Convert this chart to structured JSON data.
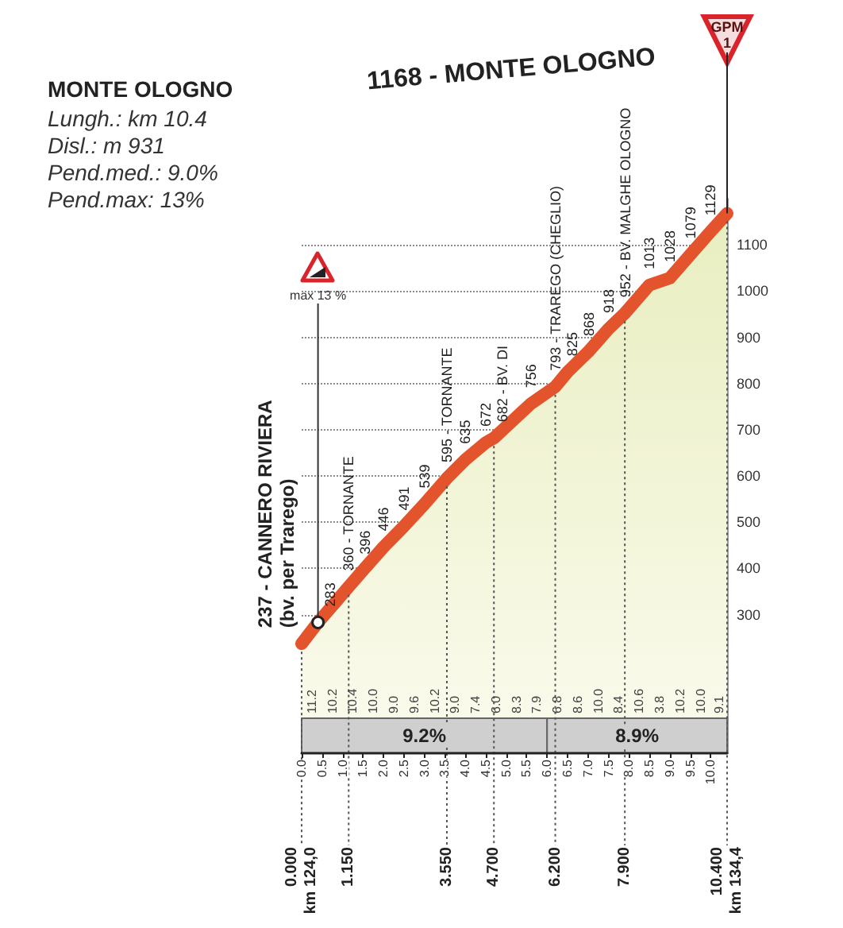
{
  "chart_data": {
    "type": "area",
    "title": "1168 - MONTE OLOGNO",
    "subtitle": "MONTE OLOGNO\nLungh.: km 10.4\nDisl.: m 931\nPend.med.: 9.0%\nPend.max: 13%",
    "annotations": [
      {
        "text": "max 13 %",
        "x": 0.4,
        "y": 283
      },
      {
        "text": "GPM\n1",
        "x": 10.4,
        "y": 1168
      },
      "11.2",
      "10.2",
      "10.4",
      "10.0",
      "9.0",
      "9.6",
      "10.2",
      "9.0",
      "7.4",
      "6.0",
      "8.3",
      "7.9",
      "6.8",
      "8.6",
      "10.0",
      "8.4",
      "10.6",
      "3.8",
      "10.2",
      "10.0",
      "9.1"
    ],
    "x": [
      0,
      0.4,
      1.15,
      1.5,
      2,
      2.5,
      3,
      3.55,
      4,
      4.5,
      4.7,
      5.6,
      6.2,
      6.5,
      7,
      7.5,
      7.9,
      8.5,
      9,
      9.5,
      10,
      10.4
    ],
    "values": [
      237,
      283,
      360,
      396,
      446,
      491,
      539,
      595,
      635,
      672,
      682,
      756,
      793,
      825,
      868,
      918,
      952,
      1013,
      1028,
      1079,
      1129,
      1168
    ],
    "value_labels": [
      "237 - CANNERO RIVIERA\n(bv. per Trarego)",
      "283",
      "360 - TORNANTE",
      "396",
      "446",
      "491",
      "539",
      "595 - TORNANTE",
      "635",
      "672",
      "682 - BV. DI",
      "756",
      "793 - TRAREGO (CHEGLIO)",
      "825",
      "868",
      "918",
      "952 - BV. MALGHE OLOGNO",
      "1013",
      "1028",
      "1079",
      "1129",
      null
    ],
    "color": "#e4542c",
    "xlim": [
      0,
      10.4
    ],
    "xticks": [
      {
        "value": 0,
        "label": "0.0"
      },
      0.5,
      {
        "value": 1,
        "label": "1.0"
      },
      1.5,
      {
        "value": 2,
        "label": "2.0"
      },
      2.5,
      {
        "value": 3,
        "label": "3.0"
      },
      3.5,
      {
        "value": 4,
        "label": "4.0"
      },
      4.5,
      {
        "value": 5,
        "label": "5.0"
      },
      5.5,
      {
        "value": 6,
        "label": "6.0"
      },
      6.5,
      {
        "value": 7,
        "label": "7.0"
      },
      7.5,
      {
        "value": 8,
        "label": "8.0"
      },
      8.5,
      {
        "value": 9,
        "label": "9.0"
      },
      9.5,
      {
        "value": 10,
        "label": "10.0"
      }
    ],
    "ylim": [
      0,
      1200
    ],
    "yticks": [
      300,
      400,
      500,
      600,
      700,
      800,
      900,
      1000,
      1100
    ],
    "grid": "y",
    "marker": "none",
    "ref_lines": [
      {
        "axis": "x",
        "value": 0,
        "label": "0.000\nkm 124,0"
      },
      {
        "axis": "x",
        "value": 1.15,
        "label": "1.150"
      },
      {
        "axis": "x",
        "value": 3.55,
        "label": "3.550"
      },
      {
        "axis": "x",
        "value": 4.7,
        "label": "4.700"
      },
      {
        "axis": "x",
        "value": 6.2,
        "label": "6.200"
      },
      {
        "axis": "x",
        "value": 7.9,
        "label": "7.900"
      },
      {
        "axis": "x",
        "value": 10.4,
        "label": "10.400\nkm 134,4"
      }
    ],
    "bands": [
      {
        "axis": "x",
        "from": 0,
        "to": 6,
        "label": "9.2%",
        "color": "#cfcfcf"
      },
      {
        "axis": "x",
        "from": 6,
        "to": 10.4,
        "label": "8.9%",
        "color": "#cfcfcf"
      }
    ]
  }
}
